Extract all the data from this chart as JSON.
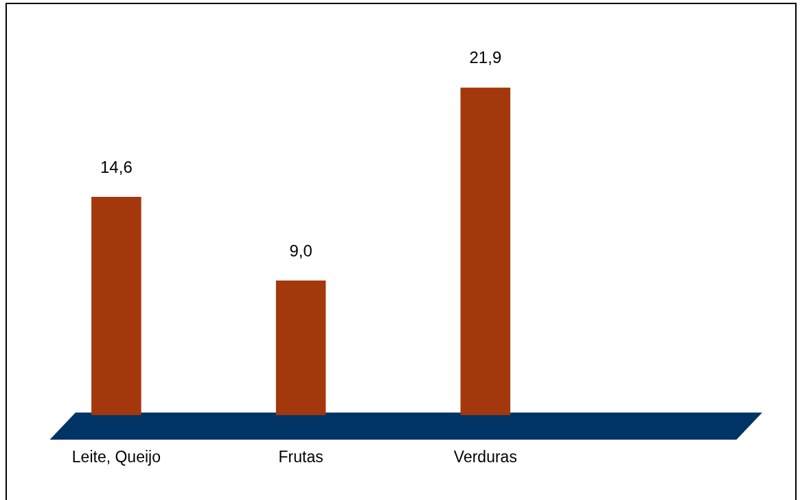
{
  "chart_data": {
    "type": "bar",
    "categories": [
      "Leite, Queijo",
      "Frutas",
      "Verduras",
      null
    ],
    "values": [
      14.6,
      9.0,
      21.9,
      null
    ],
    "value_labels": [
      "14,6",
      "9,0",
      "21,9",
      null
    ],
    "color": "#a3380c",
    "grid": false,
    "legend": false
  }
}
